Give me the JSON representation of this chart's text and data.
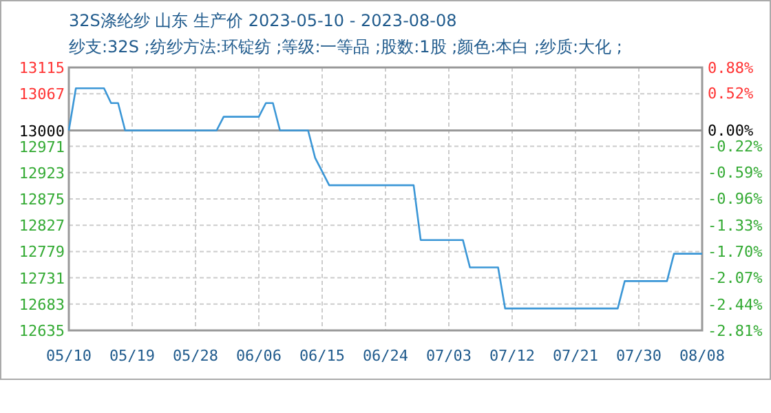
{
  "chart_data": {
    "type": "line",
    "title": "32S涤纶纱 山东 生产价 2023-05-10 - 2023-08-08",
    "subtitle": "纱支:32S ;纺纱方法:环锭纺 ;等级:一等品 ;股数:1股 ;颜色:本白 ;纱质:大化 ;",
    "x": [
      "2023-05-10",
      "2023-05-11",
      "2023-05-15",
      "2023-05-16",
      "2023-05-17",
      "2023-05-18",
      "2023-05-31",
      "2023-06-01",
      "2023-06-06",
      "2023-06-07",
      "2023-06-08",
      "2023-06-09",
      "2023-06-13",
      "2023-06-14",
      "2023-06-15",
      "2023-06-16",
      "2023-06-28",
      "2023-06-29",
      "2023-07-05",
      "2023-07-06",
      "2023-07-10",
      "2023-07-11",
      "2023-07-27",
      "2023-07-28",
      "2023-08-03",
      "2023-08-04",
      "2023-08-08"
    ],
    "series": [
      {
        "color": "#3a96d6",
        "values": [
          13000,
          13077,
          13077,
          13050,
          13050,
          13000,
          13000,
          13025,
          13025,
          13050,
          13050,
          13000,
          13000,
          12950,
          12925,
          12900,
          12900,
          12800,
          12800,
          12750,
          12750,
          12675,
          12675,
          12725,
          12725,
          12775,
          12775
        ]
      }
    ],
    "xlim": [
      "2023-05-10",
      "2023-08-08"
    ],
    "xticks": [
      {
        "value": "2023-05-10",
        "label": "05/10"
      },
      {
        "value": "2023-05-19",
        "label": "05/19"
      },
      {
        "value": "2023-05-28",
        "label": "05/28"
      },
      {
        "value": "2023-06-06",
        "label": "06/06"
      },
      {
        "value": "2023-06-15",
        "label": "06/15"
      },
      {
        "value": "2023-06-24",
        "label": "06/24"
      },
      {
        "value": "2023-07-03",
        "label": "07/03"
      },
      {
        "value": "2023-07-12",
        "label": "07/12"
      },
      {
        "value": "2023-07-21",
        "label": "07/21"
      },
      {
        "value": "2023-07-30",
        "label": "07/30"
      },
      {
        "value": "2023-08-08",
        "label": "08/08"
      }
    ],
    "ylim": [
      12635,
      13115
    ],
    "yticks": [
      12635,
      12683,
      12731,
      12779,
      12827,
      12875,
      12923,
      12971,
      13000,
      13067,
      13115
    ],
    "y2lim": [
      -2.81,
      0.88
    ],
    "y2ticks": [
      {
        "value": -2.81,
        "label": "-2.81%"
      },
      {
        "value": -2.44,
        "label": "-2.44%"
      },
      {
        "value": -2.07,
        "label": "-2.07%"
      },
      {
        "value": -1.7,
        "label": "-1.70%"
      },
      {
        "value": -1.33,
        "label": "-1.33%"
      },
      {
        "value": -0.96,
        "label": "-0.96%"
      },
      {
        "value": -0.59,
        "label": "-0.59%"
      },
      {
        "value": -0.22,
        "label": "-0.22%"
      },
      {
        "value": 0,
        "label": "0.00%"
      },
      {
        "value": 0.52,
        "label": "0.52%"
      },
      {
        "value": 0.88,
        "label": "0.88%"
      }
    ],
    "ref_lines": [
      {
        "axis": "y",
        "value": 13000,
        "color": "#999999"
      }
    ],
    "grid": true,
    "marker": "none",
    "line_style": "solid"
  }
}
